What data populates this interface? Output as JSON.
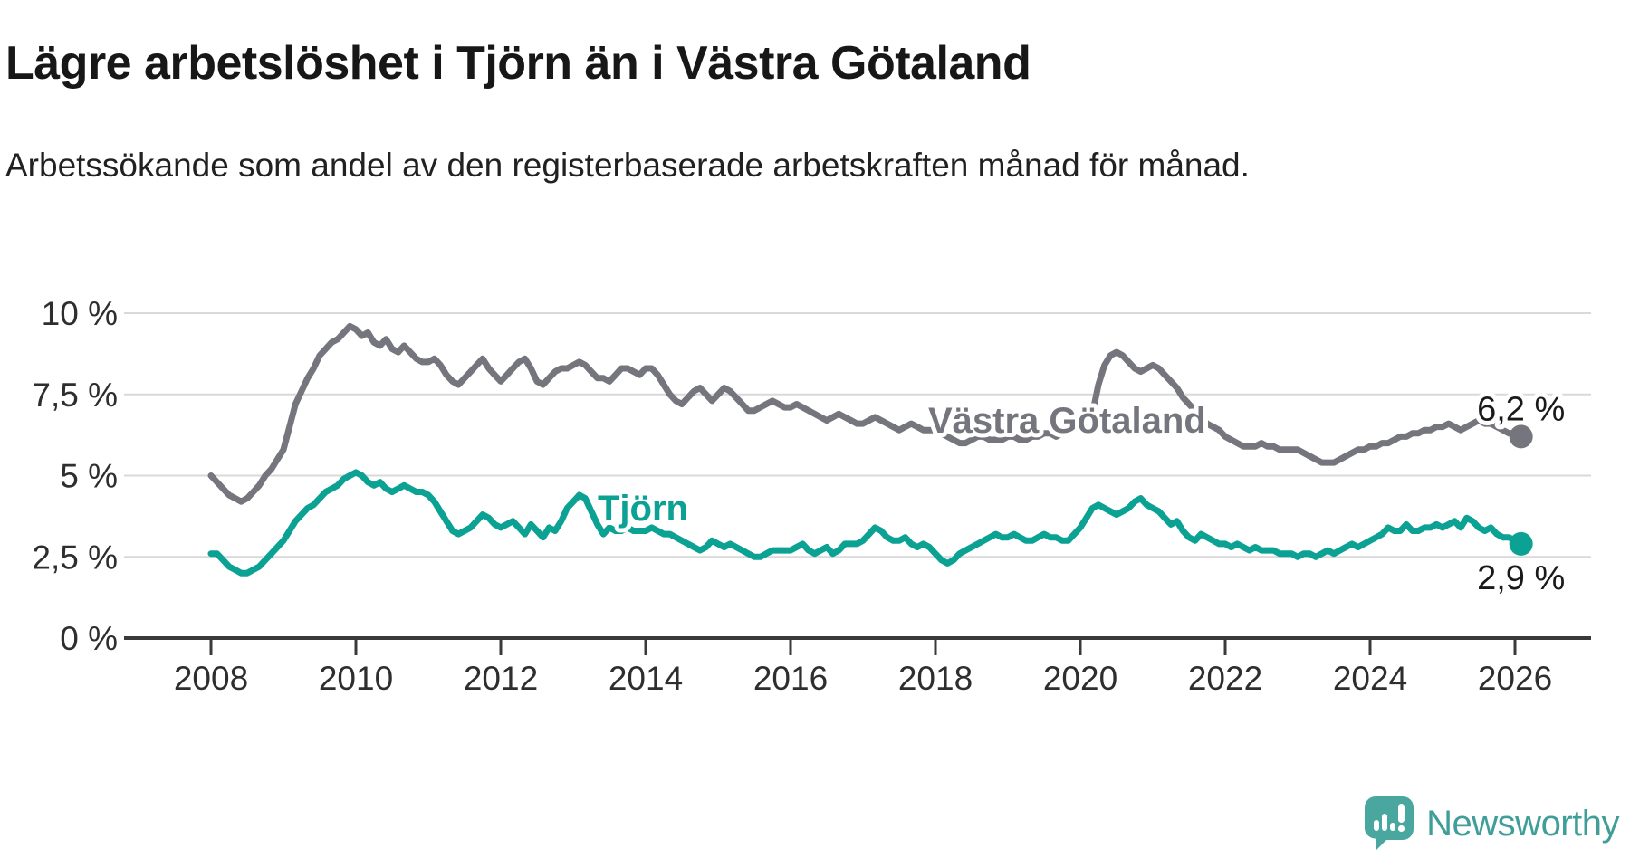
{
  "header": {
    "title": "Lägre arbetslöshet i Tjörn än i Västra Götaland",
    "subtitle": "Arbetssökande som andel av den registerbaserade arbetskraften månad för månad."
  },
  "footer": {
    "brand": "Newsworthy",
    "logo_icon": "bar-chart-exclamation-speech-bubble"
  },
  "colors": {
    "vastra_gotaland": "#75757D",
    "tjorn": "#0BA294",
    "axis": "#3A3A3A",
    "gridline": "#D9D9D9",
    "tick_text": "#2E2E2E",
    "logo_teal": "#4AA79F"
  },
  "chart_data": {
    "type": "line",
    "unit": "%",
    "frequency": "monthly",
    "x_start": "2008-01",
    "x_end": "2026-02",
    "ylim": [
      0,
      10.5
    ],
    "grid": "horizontal",
    "legend": "inline-labels",
    "x_ticks": [
      "2008",
      "2010",
      "2012",
      "2014",
      "2016",
      "2018",
      "2020",
      "2022",
      "2024",
      "2026"
    ],
    "y_ticks": [
      {
        "value": 0,
        "label": "0 %"
      },
      {
        "value": 2.5,
        "label": "2,5 %"
      },
      {
        "value": 5,
        "label": "5 %"
      },
      {
        "value": 7.5,
        "label": "7,5 %"
      },
      {
        "value": 10,
        "label": "10 %"
      }
    ],
    "series": [
      {
        "name": "Västra Götaland",
        "color": "#75757D",
        "end_label": "6,2 %",
        "values": [
          5.0,
          4.8,
          4.6,
          4.4,
          4.3,
          4.2,
          4.3,
          4.5,
          4.7,
          5.0,
          5.2,
          5.5,
          5.8,
          6.5,
          7.2,
          7.6,
          8.0,
          8.3,
          8.7,
          8.9,
          9.1,
          9.2,
          9.4,
          9.6,
          9.5,
          9.3,
          9.4,
          9.1,
          9.0,
          9.2,
          8.9,
          8.8,
          9.0,
          8.8,
          8.6,
          8.5,
          8.5,
          8.6,
          8.4,
          8.1,
          7.9,
          7.8,
          8.0,
          8.2,
          8.4,
          8.6,
          8.3,
          8.1,
          7.9,
          8.1,
          8.3,
          8.5,
          8.6,
          8.3,
          7.9,
          7.8,
          8.0,
          8.2,
          8.3,
          8.3,
          8.4,
          8.5,
          8.4,
          8.2,
          8.0,
          8.0,
          7.9,
          8.1,
          8.3,
          8.3,
          8.2,
          8.1,
          8.3,
          8.3,
          8.1,
          7.8,
          7.5,
          7.3,
          7.2,
          7.4,
          7.6,
          7.7,
          7.5,
          7.3,
          7.5,
          7.7,
          7.6,
          7.4,
          7.2,
          7.0,
          7.0,
          7.1,
          7.2,
          7.3,
          7.2,
          7.1,
          7.1,
          7.2,
          7.1,
          7.0,
          6.9,
          6.8,
          6.7,
          6.8,
          6.9,
          6.8,
          6.7,
          6.6,
          6.6,
          6.7,
          6.8,
          6.7,
          6.6,
          6.5,
          6.4,
          6.5,
          6.6,
          6.5,
          6.4,
          6.4,
          6.4,
          6.3,
          6.2,
          6.1,
          6.0,
          6.0,
          6.1,
          6.2,
          6.2,
          6.1,
          6.1,
          6.1,
          6.2,
          6.2,
          6.1,
          6.1,
          6.2,
          6.2,
          6.3,
          6.3,
          6.2,
          6.3,
          6.4,
          6.4,
          6.5,
          6.5,
          6.9,
          7.8,
          8.4,
          8.7,
          8.8,
          8.7,
          8.5,
          8.3,
          8.2,
          8.3,
          8.4,
          8.3,
          8.1,
          7.9,
          7.7,
          7.4,
          7.2,
          7.0,
          6.8,
          6.6,
          6.5,
          6.4,
          6.2,
          6.1,
          6.0,
          5.9,
          5.9,
          5.9,
          6.0,
          5.9,
          5.9,
          5.8,
          5.8,
          5.8,
          5.8,
          5.7,
          5.6,
          5.5,
          5.4,
          5.4,
          5.4,
          5.5,
          5.6,
          5.7,
          5.8,
          5.8,
          5.9,
          5.9,
          6.0,
          6.0,
          6.1,
          6.2,
          6.2,
          6.3,
          6.3,
          6.4,
          6.4,
          6.5,
          6.5,
          6.6,
          6.5,
          6.4,
          6.5,
          6.6,
          6.7,
          6.6,
          6.6,
          6.5,
          6.4,
          6.3,
          6.3,
          6.2
        ]
      },
      {
        "name": "Tjörn",
        "color": "#0BA294",
        "end_label": "2,9 %",
        "values": [
          2.6,
          2.6,
          2.4,
          2.2,
          2.1,
          2.0,
          2.0,
          2.1,
          2.2,
          2.4,
          2.6,
          2.8,
          3.0,
          3.3,
          3.6,
          3.8,
          4.0,
          4.1,
          4.3,
          4.5,
          4.6,
          4.7,
          4.9,
          5.0,
          5.1,
          5.0,
          4.8,
          4.7,
          4.8,
          4.6,
          4.5,
          4.6,
          4.7,
          4.6,
          4.5,
          4.5,
          4.4,
          4.2,
          3.9,
          3.6,
          3.3,
          3.2,
          3.3,
          3.4,
          3.6,
          3.8,
          3.7,
          3.5,
          3.4,
          3.5,
          3.6,
          3.4,
          3.2,
          3.5,
          3.3,
          3.1,
          3.4,
          3.3,
          3.6,
          4.0,
          4.2,
          4.4,
          4.3,
          3.9,
          3.5,
          3.2,
          3.4,
          3.3,
          3.3,
          3.4,
          3.3,
          3.3,
          3.3,
          3.4,
          3.3,
          3.2,
          3.2,
          3.1,
          3.0,
          2.9,
          2.8,
          2.7,
          2.8,
          3.0,
          2.9,
          2.8,
          2.9,
          2.8,
          2.7,
          2.6,
          2.5,
          2.5,
          2.6,
          2.7,
          2.7,
          2.7,
          2.7,
          2.8,
          2.9,
          2.7,
          2.6,
          2.7,
          2.8,
          2.6,
          2.7,
          2.9,
          2.9,
          2.9,
          3.0,
          3.2,
          3.4,
          3.3,
          3.1,
          3.0,
          3.0,
          3.1,
          2.9,
          2.8,
          2.9,
          2.8,
          2.6,
          2.4,
          2.3,
          2.4,
          2.6,
          2.7,
          2.8,
          2.9,
          3.0,
          3.1,
          3.2,
          3.1,
          3.1,
          3.2,
          3.1,
          3.0,
          3.0,
          3.1,
          3.2,
          3.1,
          3.1,
          3.0,
          3.0,
          3.2,
          3.4,
          3.7,
          4.0,
          4.1,
          4.0,
          3.9,
          3.8,
          3.9,
          4.0,
          4.2,
          4.3,
          4.1,
          4.0,
          3.9,
          3.7,
          3.5,
          3.6,
          3.3,
          3.1,
          3.0,
          3.2,
          3.1,
          3.0,
          2.9,
          2.9,
          2.8,
          2.9,
          2.8,
          2.7,
          2.8,
          2.7,
          2.7,
          2.7,
          2.6,
          2.6,
          2.6,
          2.5,
          2.6,
          2.6,
          2.5,
          2.6,
          2.7,
          2.6,
          2.7,
          2.8,
          2.9,
          2.8,
          2.9,
          3.0,
          3.1,
          3.2,
          3.4,
          3.3,
          3.3,
          3.5,
          3.3,
          3.3,
          3.4,
          3.4,
          3.5,
          3.4,
          3.5,
          3.6,
          3.4,
          3.7,
          3.6,
          3.4,
          3.3,
          3.4,
          3.2,
          3.1,
          3.1,
          3.0,
          2.9
        ]
      }
    ]
  }
}
